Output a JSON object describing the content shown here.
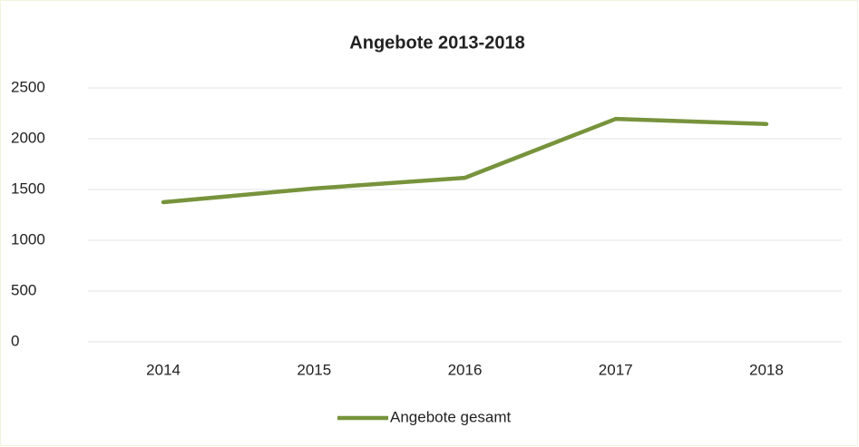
{
  "chart_data": {
    "type": "line",
    "title": "Angebote 2013-2018",
    "categories": [
      "2014",
      "2015",
      "2016",
      "2017",
      "2018"
    ],
    "series": [
      {
        "name": "Angebote gesamt",
        "color": "#77933c",
        "values": [
          1375,
          1510,
          1615,
          2195,
          2145
        ]
      }
    ],
    "ylim": [
      0,
      2500
    ],
    "yticks": [
      0,
      500,
      1000,
      1500,
      2000,
      2500
    ],
    "grid": true,
    "legend": "bottom"
  }
}
